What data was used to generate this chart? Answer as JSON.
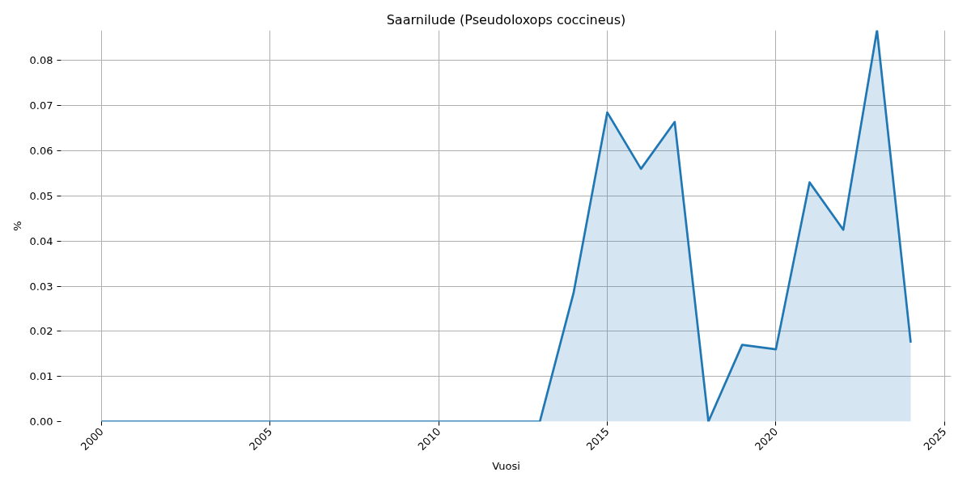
{
  "chart_data": {
    "type": "area",
    "title": "Saarnilude (Pseudoloxops coccineus)",
    "xlabel": "Vuosi",
    "ylabel": "%",
    "x": [
      2000,
      2001,
      2002,
      2003,
      2004,
      2005,
      2006,
      2007,
      2008,
      2009,
      2010,
      2011,
      2012,
      2013,
      2014,
      2015,
      2016,
      2017,
      2018,
      2019,
      2020,
      2021,
      2022,
      2023,
      2024
    ],
    "values": [
      0,
      0,
      0,
      0,
      0,
      0,
      0,
      0,
      0,
      0,
      0,
      0,
      0,
      0,
      0.0285,
      0.0685,
      0.056,
      0.0664,
      0,
      0.017,
      0.016,
      0.053,
      0.0425,
      0.0867,
      0.0175
    ],
    "color": "#1f77b4",
    "xlim": [
      1998.8,
      2025.2
    ],
    "xticks": [
      2000,
      2005,
      2010,
      2015,
      2020,
      2025
    ],
    "ylim": [
      0,
      0.0867
    ],
    "yticks": [
      {
        "value": 0,
        "label": "0.00"
      },
      0.01,
      0.02,
      0.03,
      0.04,
      0.05,
      0.06,
      0.07,
      0.08
    ],
    "grid": true,
    "line_style": "solid"
  }
}
